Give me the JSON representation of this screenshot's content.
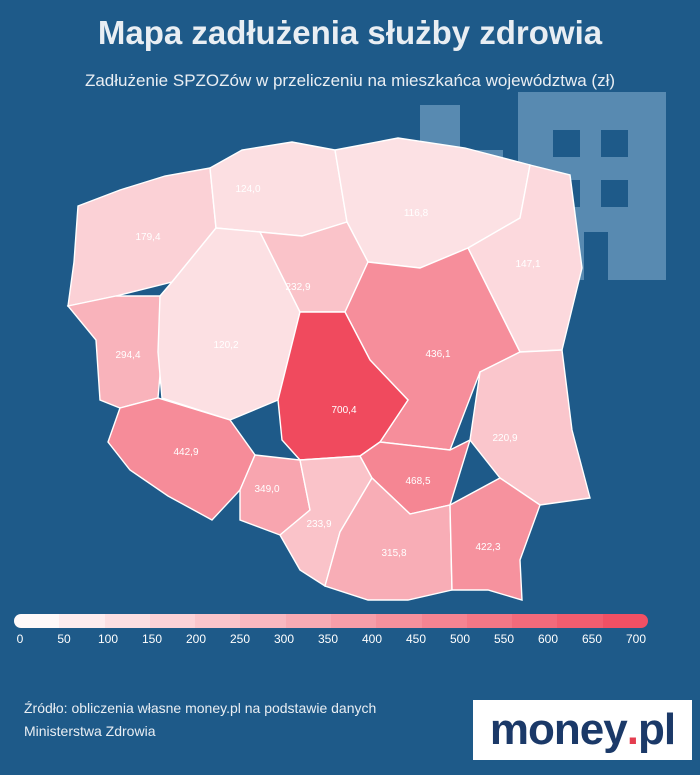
{
  "header": {
    "title": "Mapa zadłużenia służby zdrowia",
    "subtitle": "Zadłużenie SPZOZów w przeliczeniu na mieszkańca województwa (zł)"
  },
  "map_data": {
    "regions": [
      {
        "id": "zachodniopomorskie",
        "value": 179.4,
        "label": "179,4"
      },
      {
        "id": "pomorskie",
        "value": 124.0,
        "label": "124,0"
      },
      {
        "id": "warminsko-mazurskie",
        "value": 116.8,
        "label": "116,8"
      },
      {
        "id": "podlaskie",
        "value": 147.1,
        "label": "147,1"
      },
      {
        "id": "lubuskie",
        "value": 294.4,
        "label": "294,4"
      },
      {
        "id": "wielkopolskie",
        "value": 120.2,
        "label": "120,2"
      },
      {
        "id": "kujawsko-pomorskie",
        "value": 232.9,
        "label": "232,9"
      },
      {
        "id": "mazowieckie",
        "value": 436.1,
        "label": "436,1"
      },
      {
        "id": "lodzkie",
        "value": 700.4,
        "label": "700,4"
      },
      {
        "id": "lubelskie",
        "value": 220.9,
        "label": "220,9"
      },
      {
        "id": "dolnoslaskie",
        "value": 442.9,
        "label": "442,9"
      },
      {
        "id": "opolskie",
        "value": 349.0,
        "label": "349,0"
      },
      {
        "id": "slaskie",
        "value": 233.9,
        "label": "233,9"
      },
      {
        "id": "swietokrzyskie",
        "value": 468.5,
        "label": "468,5"
      },
      {
        "id": "malopolskie",
        "value": 315.8,
        "label": "315,8"
      },
      {
        "id": "podkarpackie",
        "value": 422.3,
        "label": "422,3"
      }
    ],
    "scale": {
      "min": 0,
      "max": 700,
      "step": 50,
      "min_color": "#ffffff",
      "max_color": "#f04a5e",
      "tick_labels": [
        "0",
        "50",
        "100",
        "150",
        "200",
        "250",
        "300",
        "350",
        "400",
        "450",
        "500",
        "550",
        "600",
        "650",
        "700"
      ]
    }
  },
  "footer": {
    "source_line1": "Źródło: obliczenia własne money.pl na podstawie danych",
    "source_line2": "Ministerstwa Zdrowia",
    "logo_main": "money",
    "logo_dot": ".",
    "logo_tld": "pl"
  },
  "colors": {
    "background": "#1e5a89",
    "decor": "#6c9bbf",
    "logo_text": "#1b3968",
    "logo_dot": "#e43d4f"
  },
  "icons": [
    "medical-cross-icon",
    "hospital-building-icon"
  ]
}
